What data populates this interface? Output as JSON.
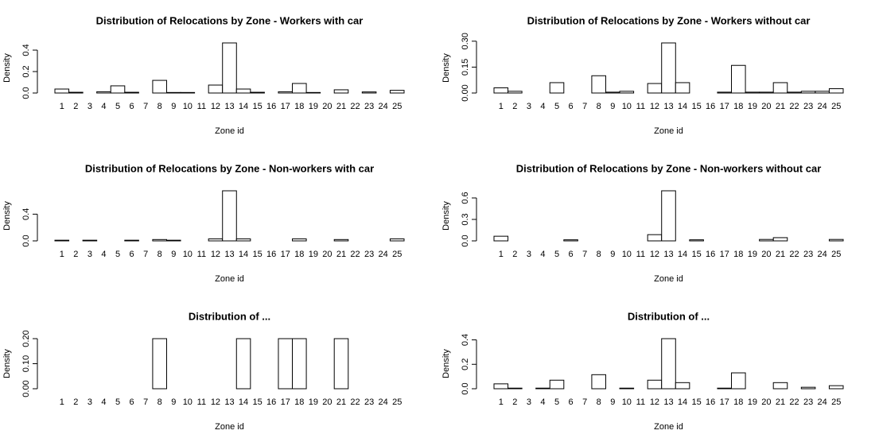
{
  "chart_data": [
    {
      "type": "bar",
      "title": "Distribution of Relocations by Zone - Workers with car",
      "xlabel": "Zone id",
      "ylabel": "Density",
      "categories": [
        "1",
        "2",
        "3",
        "4",
        "5",
        "6",
        "7",
        "8",
        "9",
        "10",
        "11",
        "12",
        "13",
        "14",
        "15",
        "16",
        "17",
        "18",
        "19",
        "20",
        "21",
        "22",
        "23",
        "24",
        "25"
      ],
      "values": [
        0.037,
        0.007,
        0,
        0.012,
        0.067,
        0.007,
        0,
        0.118,
        0.005,
        0.005,
        0,
        0.074,
        0.467,
        0.037,
        0.007,
        0,
        0.012,
        0.089,
        0.005,
        0,
        0.03,
        0,
        0.01,
        0,
        0.025
      ],
      "ylim": [
        0,
        0.467
      ],
      "yticks": [
        {
          "value": 0,
          "label": "0.0"
        },
        {
          "value": 0.2,
          "label": "0.2"
        },
        {
          "value": 0.4,
          "label": "0.4"
        }
      ],
      "color": "#ffffff"
    },
    {
      "type": "bar",
      "title": "Distribution of Relocations by Zone - Workers without car",
      "xlabel": "Zone id",
      "ylabel": "Density",
      "categories": [
        "1",
        "2",
        "3",
        "4",
        "5",
        "6",
        "7",
        "8",
        "9",
        "10",
        "11",
        "12",
        "13",
        "14",
        "15",
        "16",
        "17",
        "18",
        "19",
        "20",
        "21",
        "22",
        "23",
        "24",
        "25"
      ],
      "values": [
        0.03,
        0.01,
        0,
        0,
        0.06,
        0,
        0,
        0.1,
        0.005,
        0.01,
        0,
        0.055,
        0.29,
        0.06,
        0,
        0,
        0.005,
        0.16,
        0.005,
        0.005,
        0.06,
        0.005,
        0.01,
        0.01,
        0.025
      ],
      "ylim": [
        0,
        0.29
      ],
      "yticks": [
        {
          "value": 0,
          "label": "0.00"
        },
        {
          "value": 0.15,
          "label": "0.15"
        },
        {
          "value": 0.3,
          "label": "0.30"
        }
      ],
      "color": "#ffffff"
    },
    {
      "type": "bar",
      "title": "Distribution of Relocations by Zone - Non-workers with car",
      "xlabel": "Zone id",
      "ylabel": "Density",
      "categories": [
        "1",
        "2",
        "3",
        "4",
        "5",
        "6",
        "7",
        "8",
        "9",
        "10",
        "11",
        "12",
        "13",
        "14",
        "15",
        "16",
        "17",
        "18",
        "19",
        "20",
        "21",
        "22",
        "23",
        "24",
        "25"
      ],
      "values": [
        0.01,
        0,
        0.01,
        0,
        0,
        0.01,
        0,
        0.02,
        0.01,
        0,
        0,
        0.03,
        0.75,
        0.03,
        0,
        0,
        0,
        0.03,
        0,
        0,
        0.02,
        0,
        0,
        0,
        0.03
      ],
      "ylim": [
        0,
        0.75
      ],
      "yticks": [
        {
          "value": 0,
          "label": "0.0"
        },
        {
          "value": 0.4,
          "label": "0.4"
        }
      ],
      "color": "#ffffff"
    },
    {
      "type": "bar",
      "title": "Distribution of Relocations by Zone - Non-workers without car",
      "xlabel": "Zone id",
      "ylabel": "Density",
      "categories": [
        "1",
        "2",
        "3",
        "4",
        "5",
        "6",
        "7",
        "8",
        "9",
        "10",
        "11",
        "12",
        "13",
        "14",
        "15",
        "16",
        "17",
        "18",
        "19",
        "20",
        "21",
        "22",
        "23",
        "24",
        "25"
      ],
      "values": [
        0.065,
        0,
        0,
        0,
        0,
        0.015,
        0,
        0,
        0,
        0,
        0,
        0.087,
        0.7,
        0,
        0.015,
        0,
        0,
        0,
        0,
        0.02,
        0.045,
        0,
        0,
        0,
        0.02
      ],
      "ylim": [
        0,
        0.7
      ],
      "yticks": [
        {
          "value": 0,
          "label": "0.0"
        },
        {
          "value": 0.3,
          "label": "0.3"
        },
        {
          "value": 0.6,
          "label": "0.6"
        }
      ],
      "color": "#ffffff"
    },
    {
      "type": "bar",
      "title": "Distribution of ...",
      "xlabel": "Zone id",
      "ylabel": "Density",
      "categories": [
        "1",
        "2",
        "3",
        "4",
        "5",
        "6",
        "7",
        "8",
        "9",
        "10",
        "11",
        "12",
        "13",
        "14",
        "15",
        "16",
        "17",
        "18",
        "19",
        "20",
        "21",
        "22",
        "23",
        "24",
        "25"
      ],
      "values": [
        0,
        0,
        0,
        0,
        0,
        0,
        0,
        0.2,
        0,
        0,
        0,
        0,
        0,
        0.2,
        0,
        0,
        0.2,
        0.2,
        0,
        0,
        0.2,
        0,
        0,
        0,
        0
      ],
      "ylim": [
        0,
        0.2
      ],
      "yticks": [
        {
          "value": 0,
          "label": "0.00"
        },
        {
          "value": 0.1,
          "label": "0.10"
        },
        {
          "value": 0.2,
          "label": "0.20"
        }
      ],
      "color": "#ffffff"
    },
    {
      "type": "bar",
      "title": "Distribution of ...",
      "xlabel": "Zone id",
      "ylabel": "Density",
      "categories": [
        "1",
        "2",
        "3",
        "4",
        "5",
        "6",
        "7",
        "8",
        "9",
        "10",
        "11",
        "12",
        "13",
        "14",
        "15",
        "16",
        "17",
        "18",
        "19",
        "20",
        "21",
        "22",
        "23",
        "24",
        "25"
      ],
      "values": [
        0.04,
        0.005,
        0,
        0.005,
        0.07,
        0,
        0,
        0.115,
        0,
        0.005,
        0,
        0.07,
        0.41,
        0.05,
        0,
        0,
        0.005,
        0.13,
        0,
        0,
        0.05,
        0,
        0.012,
        0,
        0.025
      ],
      "ylim": [
        0,
        0.41
      ],
      "yticks": [
        {
          "value": 0,
          "label": "0.0"
        },
        {
          "value": 0.2,
          "label": "0.2"
        },
        {
          "value": 0.4,
          "label": "0.4"
        }
      ],
      "color": "#ffffff"
    }
  ]
}
